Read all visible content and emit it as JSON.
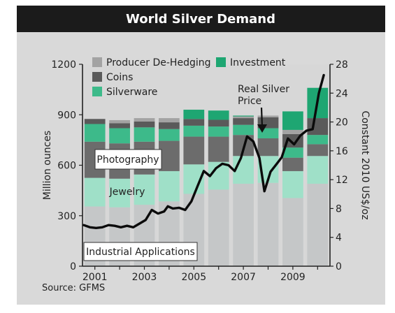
{
  "title": "World Silver Demand",
  "source": "Source: GFMS",
  "chart_data": {
    "type": "bar",
    "stacked": true,
    "categories": [
      "2001",
      "2002",
      "2003",
      "2004",
      "2005",
      "2006",
      "2007",
      "2008",
      "2009",
      "2010"
    ],
    "x_tick_labels": [
      "2001",
      "2003",
      "2005",
      "2007",
      "2009"
    ],
    "ylabel": "Million ounces",
    "ylim": [
      0,
      1200
    ],
    "yticks": [
      0,
      300,
      600,
      900,
      1200
    ],
    "y2label": "Constant 2010 US$/oz",
    "y2lim": [
      0,
      28
    ],
    "y2ticks": [
      0,
      4,
      8,
      12,
      16,
      20,
      24,
      28
    ],
    "legend_position": "top-left",
    "series": [
      {
        "name": "Industrial Applications",
        "color": "#c5c7c8",
        "values": [
          355,
          350,
          365,
          385,
          430,
          455,
          490,
          495,
          405,
          490
        ]
      },
      {
        "name": "Jewelry",
        "color": "#9fe0c8",
        "values": [
          170,
          170,
          180,
          180,
          175,
          165,
          165,
          160,
          160,
          165
        ]
      },
      {
        "name": "Photography",
        "color": "#6c6c6c",
        "values": [
          215,
          210,
          195,
          180,
          165,
          150,
          125,
          105,
          80,
          70
        ]
      },
      {
        "name": "Silverware",
        "color": "#3dba8a",
        "values": [
          105,
          90,
          85,
          70,
          65,
          60,
          60,
          60,
          60,
          55
        ]
      },
      {
        "name": "Coins",
        "color": "#5a5a5a",
        "values": [
          30,
          30,
          35,
          40,
          40,
          40,
          40,
          65,
          80,
          100
        ]
      },
      {
        "name": "Producer De-Hedging",
        "color": "#a3a3a3",
        "values": [
          0,
          18,
          20,
          25,
          0,
          0,
          10,
          10,
          25,
          0
        ]
      },
      {
        "name": "Investment",
        "color": "#1ea672",
        "values": [
          0,
          0,
          0,
          0,
          55,
          55,
          5,
          0,
          110,
          180
        ]
      }
    ],
    "price_line": {
      "name": "Real Silver Price",
      "axis": "right",
      "x": [
        2000.55,
        2000.8,
        2001.05,
        2001.3,
        2001.55,
        2001.8,
        2002.05,
        2002.3,
        2002.55,
        2002.8,
        2003.05,
        2003.3,
        2003.55,
        2003.8,
        2003.95,
        2004.15,
        2004.4,
        2004.65,
        2004.9,
        2005.15,
        2005.4,
        2005.65,
        2005.9,
        2006.15,
        2006.4,
        2006.65,
        2006.9,
        2007.15,
        2007.4,
        2007.65,
        2007.85,
        2008.1,
        2008.35,
        2008.55,
        2008.8,
        2009.05,
        2009.3,
        2009.55,
        2009.8,
        2010.05,
        2010.25
      ],
      "values": [
        5.7,
        5.4,
        5.3,
        5.4,
        5.7,
        5.6,
        5.4,
        5.6,
        5.4,
        5.9,
        6.4,
        7.8,
        7.3,
        7.6,
        8.3,
        8.0,
        8.1,
        7.8,
        9.0,
        11.1,
        13.2,
        12.5,
        13.6,
        14.2,
        14.0,
        13.2,
        15.0,
        18.0,
        17.3,
        15.0,
        10.4,
        13.1,
        14.2,
        15.1,
        17.7,
        16.9,
        18.1,
        18.8,
        19.0,
        24.0,
        26.5
      ]
    },
    "annotations": [
      "Real Silver Price"
    ]
  },
  "legend_items": [
    {
      "label": "Producer De-Hedging",
      "color": "#a3a3a3"
    },
    {
      "label": "Investment",
      "color": "#1ea672"
    },
    {
      "label": "Coins",
      "color": "#5a5a5a"
    },
    {
      "label": "Silverware",
      "color": "#3dba8a"
    }
  ],
  "in_chart_labels": {
    "photography": "Photography",
    "jewelry": "Jewelry",
    "industrial": "Industrial Applications",
    "price_line_1": "Real Silver",
    "price_line_2": "Price"
  }
}
